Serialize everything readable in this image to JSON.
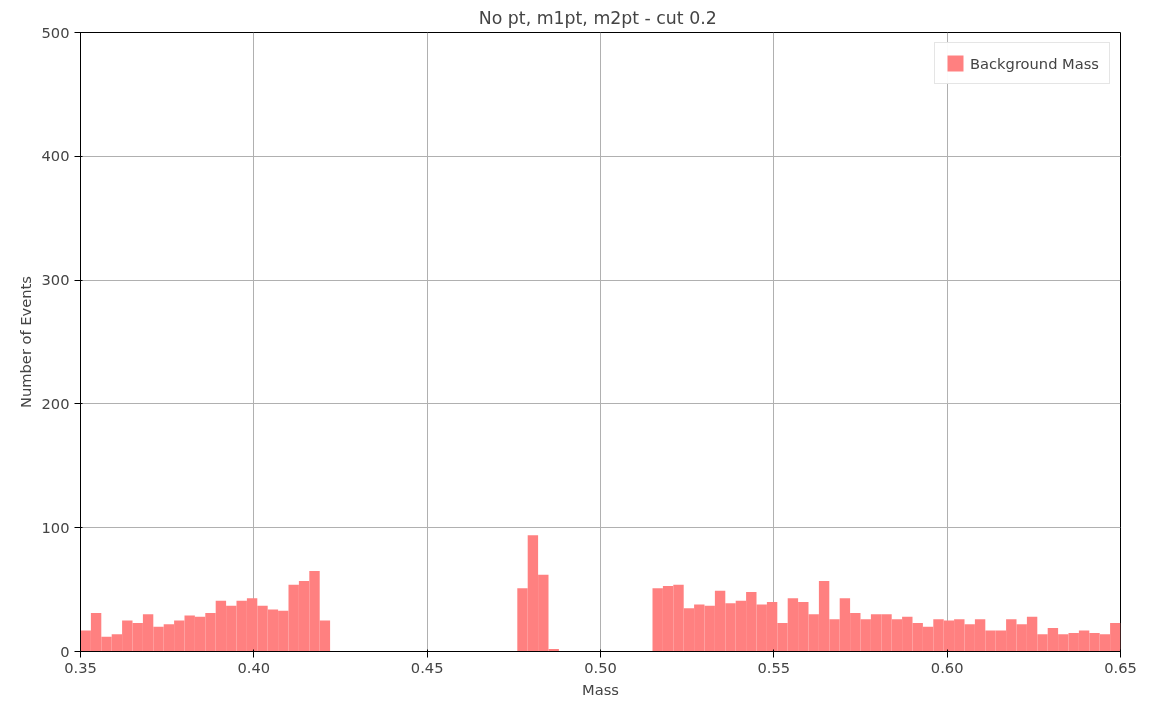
{
  "chart_data": {
    "type": "histogram",
    "title": "No pt, m1pt, m2pt  - cut 0.2",
    "xlabel": "Mass",
    "ylabel": "Number of Events",
    "bins": [
      0.35,
      0.353,
      0.356,
      0.359,
      0.362,
      0.365,
      0.368,
      0.371,
      0.374,
      0.377,
      0.38,
      0.383,
      0.386,
      0.389,
      0.392,
      0.395,
      0.398,
      0.401,
      0.404,
      0.407,
      0.41,
      0.413,
      0.416,
      0.419,
      0.422,
      0.425,
      0.428,
      0.431,
      0.434,
      0.437,
      0.44,
      0.443,
      0.446,
      0.449,
      0.452,
      0.455,
      0.458,
      0.461,
      0.464,
      0.467,
      0.47,
      0.473,
      0.476,
      0.479,
      0.482,
      0.485,
      0.488,
      0.491,
      0.494,
      0.497,
      0.5,
      0.503,
      0.506,
      0.509,
      0.512,
      0.515,
      0.518,
      0.521,
      0.524,
      0.527,
      0.53,
      0.533,
      0.536,
      0.539,
      0.542,
      0.545,
      0.548,
      0.551,
      0.554,
      0.557,
      0.56,
      0.563,
      0.566,
      0.569,
      0.572,
      0.575,
      0.578,
      0.581,
      0.584,
      0.587,
      0.59,
      0.593,
      0.596,
      0.599,
      0.602,
      0.605,
      0.608,
      0.611,
      0.614,
      0.617,
      0.62,
      0.623,
      0.626,
      0.629,
      0.632,
      0.635,
      0.638,
      0.641,
      0.644,
      0.647,
      0.65
    ],
    "series": [
      {
        "name": "Background Mass",
        "color": "#ff8080",
        "values": [
          17,
          31,
          12,
          14,
          25,
          23,
          30,
          20,
          22,
          25,
          29,
          28,
          31,
          41,
          37,
          41,
          43,
          37,
          34,
          33,
          54,
          57,
          65,
          25,
          0,
          0,
          0,
          0,
          0,
          0,
          0,
          0,
          0,
          0,
          0,
          0,
          0,
          0,
          0,
          0,
          0,
          0,
          51,
          94,
          62,
          2,
          0,
          0,
          0,
          0,
          0,
          0,
          0,
          0,
          0,
          51,
          53,
          54,
          35,
          38,
          37,
          49,
          39,
          41,
          48,
          38,
          40,
          23,
          43,
          40,
          30,
          57,
          26,
          43,
          31,
          26,
          30,
          30,
          26,
          28,
          23,
          20,
          26,
          25,
          26,
          22,
          26,
          17,
          17,
          26,
          22,
          28,
          14,
          19,
          14,
          15,
          17,
          15,
          14,
          23
        ]
      }
    ],
    "xlim": [
      0.35,
      0.65
    ],
    "ylim": [
      0,
      500
    ],
    "xticks": [
      {
        "value": 0.35,
        "label": "0.35"
      },
      {
        "value": 0.4,
        "label": "0.40"
      },
      {
        "value": 0.45,
        "label": "0.45"
      },
      {
        "value": 0.5,
        "label": "0.50"
      },
      {
        "value": 0.55,
        "label": "0.55"
      },
      {
        "value": 0.6,
        "label": "0.60"
      },
      {
        "value": 0.65,
        "label": "0.65"
      }
    ],
    "yticks": [
      0,
      100,
      200,
      300,
      400,
      500
    ],
    "grid": true,
    "legend": "top right"
  }
}
